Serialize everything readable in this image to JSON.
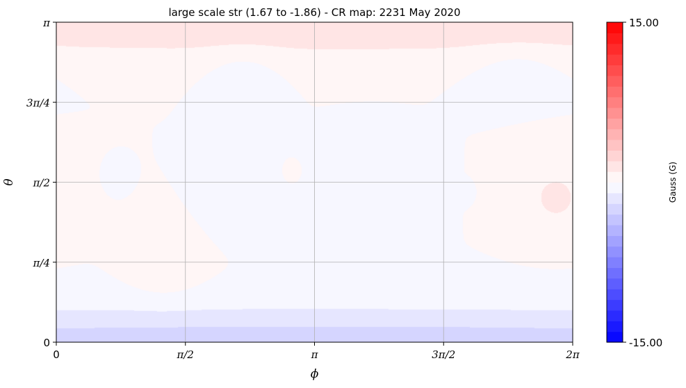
{
  "chart_data": {
    "type": "heatmap",
    "title": "large scale str (1.67 to -1.86) - CR map: 2231 May 2020",
    "xlabel": "ϕ",
    "ylabel": "θ",
    "x_ticks": [
      "0",
      "π/2",
      "π",
      "3π/2",
      "2π"
    ],
    "y_ticks": [
      "0",
      "π/4",
      "π/2",
      "3π/4",
      "π"
    ],
    "xlim": [
      0,
      6.2832
    ],
    "ylim": [
      0,
      3.1416
    ],
    "grid": true,
    "colorbar": {
      "label": "Gauss (G)",
      "max_label": "15.00",
      "min_label": "-15.00",
      "vmin": -15,
      "vmax": 15,
      "colormap": "bwr",
      "levels": 30
    },
    "field_features": [
      {
        "phi": 3.14,
        "theta": 3.06,
        "value": 1.6,
        "sx": 9.0,
        "sy": 0.08
      },
      {
        "phi": 3.14,
        "theta": 2.85,
        "value": 0.9,
        "sx": 9.0,
        "sy": 0.14
      },
      {
        "phi": 3.14,
        "theta": 0.02,
        "value": -1.8,
        "sx": 9.0,
        "sy": 0.12
      },
      {
        "phi": 3.14,
        "theta": 0.22,
        "value": -1.1,
        "sx": 9.0,
        "sy": 0.18
      },
      {
        "phi": 2.27,
        "theta": 2.66,
        "value": -0.9,
        "sx": 0.28,
        "sy": 0.14
      },
      {
        "phi": 5.61,
        "theta": 2.66,
        "value": -1.0,
        "sx": 0.35,
        "sy": 0.16
      },
      {
        "phi": 2.12,
        "theta": 1.43,
        "value": -0.9,
        "sx": 0.22,
        "sy": 0.22
      },
      {
        "phi": 3.84,
        "theta": 1.45,
        "value": -1.0,
        "sx": 0.3,
        "sy": 0.26
      },
      {
        "phi": 1.31,
        "theta": 0.8,
        "value": 1.0,
        "sx": 0.28,
        "sy": 0.22
      },
      {
        "phi": 6.08,
        "theta": 1.42,
        "value": 1.2,
        "sx": 0.3,
        "sy": 0.25
      },
      {
        "phi": 0.72,
        "theta": 1.63,
        "value": -0.8,
        "sx": 0.08,
        "sy": 0.08
      },
      {
        "phi": 4.93,
        "theta": 1.47,
        "value": -0.7,
        "sx": 0.06,
        "sy": 0.05
      },
      {
        "phi": 2.87,
        "theta": 1.68,
        "value": 0.8,
        "sx": 0.04,
        "sy": 0.04
      }
    ]
  }
}
